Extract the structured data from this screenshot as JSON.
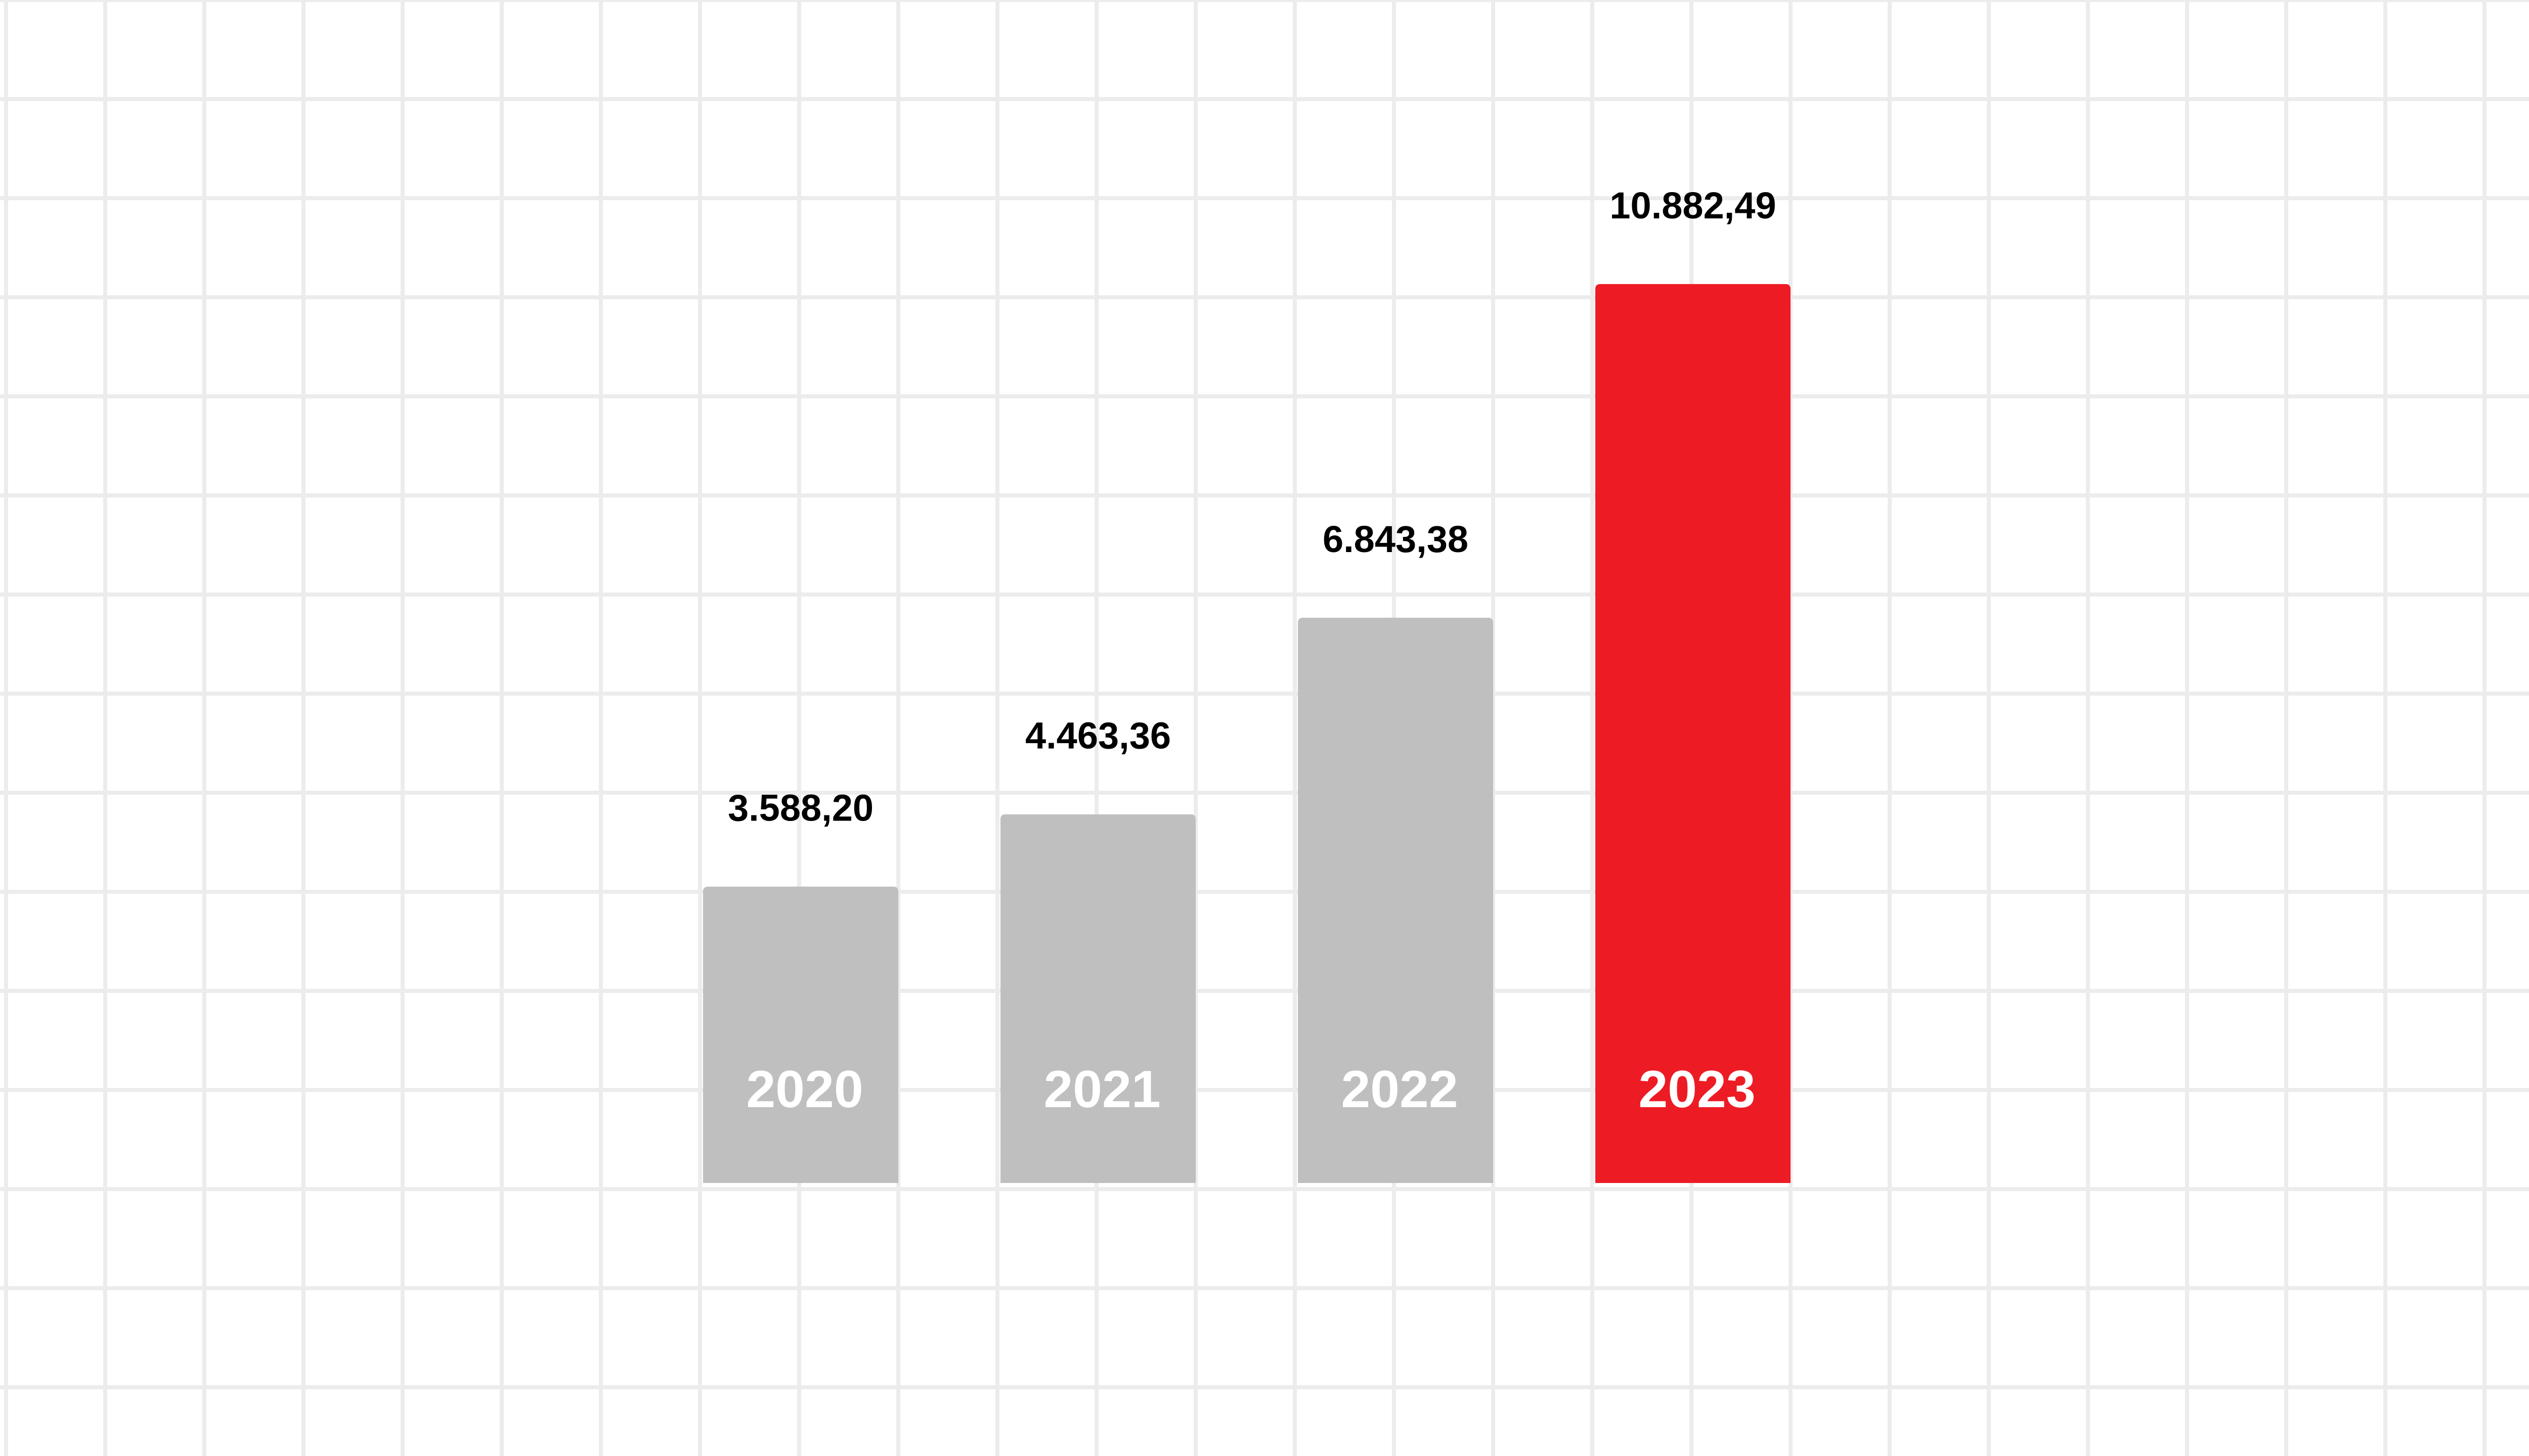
{
  "chart_data": {
    "type": "bar",
    "title": "",
    "xlabel": "",
    "ylabel": "",
    "categories": [
      "2020",
      "2021",
      "2022",
      "2023"
    ],
    "values": [
      3588.2,
      4463.36,
      6843.38,
      10882.49
    ],
    "value_labels": [
      "3.588,20",
      "4.463,36",
      "6.843,38",
      "10.882,49"
    ],
    "ylim": [
      0,
      11200
    ],
    "grid": true,
    "legend": "none",
    "colors": {
      "default_bar": "#bfbfbf",
      "highlight_bar": "#ed1c24",
      "grid": "#ececec",
      "value_text": "#000000",
      "category_text": "#ffffff"
    },
    "highlight_index": 3
  }
}
